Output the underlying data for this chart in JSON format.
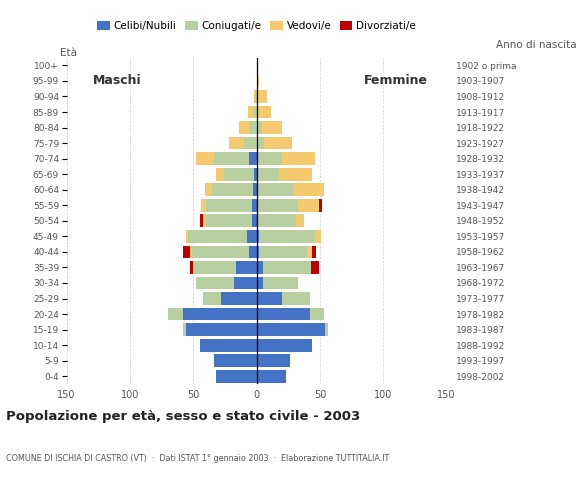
{
  "age_groups": [
    "100+",
    "95-99",
    "90-94",
    "85-89",
    "80-84",
    "75-79",
    "70-74",
    "65-69",
    "60-64",
    "55-59",
    "50-54",
    "45-49",
    "40-44",
    "35-39",
    "30-34",
    "25-29",
    "20-24",
    "15-19",
    "10-14",
    "5-9",
    "0-4"
  ],
  "birth_years": [
    "1902 o prima",
    "1903-1907",
    "1908-1912",
    "1913-1917",
    "1918-1922",
    "1923-1927",
    "1928-1932",
    "1933-1937",
    "1938-1942",
    "1943-1947",
    "1948-1952",
    "1953-1957",
    "1958-1962",
    "1963-1967",
    "1968-1972",
    "1973-1977",
    "1978-1982",
    "1983-1987",
    "1988-1992",
    "1993-1997",
    "1998-2002"
  ],
  "maschi": {
    "celibi": [
      0,
      0,
      0,
      0,
      0,
      0,
      6,
      2,
      3,
      4,
      4,
      8,
      6,
      16,
      18,
      28,
      58,
      56,
      45,
      34,
      32
    ],
    "coniugati": [
      0,
      0,
      1,
      3,
      6,
      10,
      28,
      24,
      32,
      36,
      36,
      46,
      46,
      34,
      30,
      14,
      12,
      2,
      0,
      0,
      0
    ],
    "vedovi": [
      0,
      0,
      1,
      4,
      8,
      12,
      14,
      6,
      6,
      4,
      2,
      2,
      1,
      0,
      0,
      0,
      0,
      0,
      0,
      0,
      0
    ],
    "divorziati": [
      0,
      0,
      0,
      0,
      0,
      0,
      0,
      0,
      0,
      0,
      3,
      0,
      5,
      3,
      0,
      0,
      0,
      0,
      0,
      0,
      0
    ]
  },
  "femmine": {
    "nubili": [
      0,
      0,
      0,
      0,
      0,
      0,
      0,
      0,
      1,
      1,
      1,
      2,
      2,
      5,
      5,
      20,
      42,
      54,
      44,
      26,
      23
    ],
    "coniugate": [
      0,
      0,
      0,
      1,
      4,
      6,
      20,
      18,
      28,
      32,
      30,
      44,
      38,
      38,
      28,
      22,
      11,
      2,
      0,
      0,
      0
    ],
    "vedove": [
      0,
      2,
      8,
      10,
      16,
      22,
      26,
      26,
      24,
      16,
      6,
      5,
      4,
      0,
      0,
      0,
      0,
      0,
      0,
      0,
      0
    ],
    "divorziate": [
      0,
      0,
      0,
      0,
      0,
      0,
      0,
      0,
      0,
      3,
      0,
      0,
      3,
      6,
      0,
      0,
      0,
      0,
      0,
      0,
      0
    ]
  },
  "colors": {
    "celibi": "#4472c4",
    "coniugati": "#b8cfa0",
    "vedovi": "#f5c96e",
    "divorziati": "#c00000"
  },
  "legend_labels": [
    "Celibi/Nubili",
    "Coniugati/e",
    "Vedovi/e",
    "Divorziati/e"
  ],
  "title": "Popolazione per età, sesso e stato civile - 2003",
  "subtitle": "COMUNE DI ISCHIA DI CASTRO (VT)  ·  Dati ISTAT 1° gennaio 2003  ·  Elaborazione TUTTITALIA.IT",
  "maschi_label": "Maschi",
  "femmine_label": "Femmine",
  "eta_label": "Età",
  "anno_label": "Anno di nascita",
  "xlim": 150,
  "bg_color": "#ffffff",
  "grid_color": "#cccccc"
}
